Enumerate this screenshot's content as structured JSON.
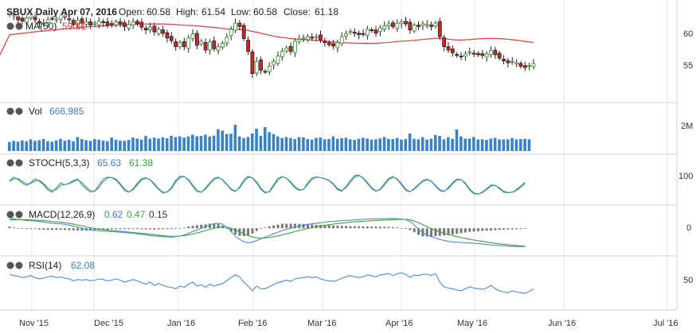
{
  "chart_data": {
    "type": "candlestick",
    "symbol": "SBUX",
    "header": {
      "prefix": "SBUX Daily Apr 07, 2016",
      "open_label": "Open:",
      "open": "60.58",
      "high_label": "High:",
      "high": "61.54",
      "low_label": "Low:",
      "low": "60.58",
      "close_label": "Close:",
      "close": "61.18"
    },
    "price_panel": {
      "ma_label": "MA(50)",
      "ma_value": "59.81",
      "ylim": [
        51,
        64
      ],
      "yticks": [
        "60",
        "55"
      ],
      "closes": [
        63.0,
        62.5,
        62.0,
        61.8,
        62.3,
        62.5,
        62.0,
        61.5,
        61.5,
        62.0,
        62.2,
        62.1,
        62.6,
        62.4,
        62.0,
        61.3,
        61.9,
        61.5,
        61.7,
        61.2,
        61.5,
        61.8,
        61.6,
        61.2,
        61.4,
        61.7,
        61.4,
        61.0,
        61.3,
        61.7,
        61.4,
        60.9,
        60.5,
        60.9,
        60.2,
        60.6,
        60.0,
        59.3,
        58.9,
        58.0,
        58.6,
        58.0,
        59.3,
        59.9,
        58.2,
        58.8,
        57.5,
        58.7,
        57.7,
        58.0,
        58.5,
        59.4,
        60.6,
        61.5,
        61.0,
        59.2,
        57.3,
        54.0,
        55.8,
        54.5,
        54.3,
        55.1,
        55.8,
        56.6,
        57.3,
        57.8,
        57.3,
        58.8,
        59.1,
        59.3,
        59.5,
        59.4,
        59.5,
        59.0,
        58.6,
        58.3,
        58.1,
        58.6,
        59.5,
        59.9,
        60.3,
        60.0,
        59.8,
        59.9,
        60.6,
        60.4,
        60.0,
        60.8,
        61.1,
        61.4,
        61.0,
        61.5,
        61.7,
        61.4,
        60.5,
        61.2,
        61.0,
        61.4,
        61.3,
        61.0,
        61.5,
        59.5,
        58.0,
        57.5,
        57.1,
        56.7,
        56.5,
        56.9,
        57.2,
        57.0,
        56.8,
        56.7,
        56.9,
        57.4,
        56.8,
        56.3,
        55.9,
        55.6,
        55.8,
        55.6,
        55.1,
        54.9,
        55.2,
        55.5
      ]
    },
    "volume_panel": {
      "label": "Vol",
      "value": "666,985",
      "ytick": "2M",
      "ylim": [
        0,
        2400000
      ],
      "values": [
        680000,
        760000,
        700000,
        800000,
        740000,
        880000,
        760000,
        820000,
        910000,
        740000,
        700000,
        800000,
        920000,
        780000,
        850000,
        740000,
        1060000,
        900000,
        820000,
        760000,
        900000,
        860000,
        790000,
        740000,
        1010000,
        860000,
        790000,
        760000,
        840000,
        1010000,
        940000,
        860000,
        1130000,
        930000,
        1010000,
        940000,
        1030000,
        960000,
        1150000,
        1050000,
        1100000,
        1010000,
        1100000,
        1230000,
        1110000,
        1140000,
        1230000,
        1100000,
        1160000,
        1640000,
        1540000,
        1280000,
        1300000,
        1980000,
        1100000,
        980000,
        1060000,
        1320000,
        1680000,
        1140000,
        1800000,
        1420000,
        1280000,
        1100000,
        990000,
        1050000,
        980000,
        900000,
        1050000,
        1020000,
        900000,
        860000,
        980000,
        1020000,
        880000,
        900000,
        1100000,
        920000,
        960000,
        1000000,
        880000,
        840000,
        920000,
        1000000,
        940000,
        860000,
        880000,
        950000,
        1060000,
        920000,
        900000,
        980000,
        860000,
        900000,
        1320000,
        920000,
        880000,
        1040000,
        870000,
        930000,
        1200000,
        1140000,
        880000,
        1040000,
        920000,
        1620000,
        1100000,
        930000,
        940000,
        1060000,
        870000,
        880000,
        840000,
        940000,
        990000,
        880000,
        870000,
        880000,
        980000,
        880000,
        900000,
        920000,
        880000
      ]
    },
    "stoch_panel": {
      "label": "STOCH(5,3,3)",
      "k_value": "65.63",
      "d_value": "61.38",
      "ytick": "100",
      "ylim": [
        0,
        100
      ],
      "k": [
        70,
        82,
        74,
        62,
        54,
        64,
        77,
        68,
        56,
        39,
        32,
        47,
        63,
        56,
        62,
        71,
        76,
        56,
        43,
        32,
        36,
        56,
        76,
        82,
        80,
        72,
        56,
        37,
        32,
        43,
        62,
        77,
        80,
        73,
        56,
        41,
        29,
        33,
        48,
        71,
        85,
        84,
        71,
        52,
        34,
        32,
        46,
        64,
        78,
        82,
        72,
        56,
        40,
        34,
        50,
        73,
        85,
        79,
        62,
        41,
        29,
        35,
        58,
        78,
        84,
        78,
        63,
        46,
        38,
        41,
        64,
        79,
        83,
        80,
        76,
        70,
        57,
        40,
        35,
        52,
        71,
        87,
        89,
        78,
        60,
        44,
        35,
        42,
        61,
        78,
        84,
        74,
        56,
        38,
        33,
        45,
        58,
        71,
        75,
        68,
        52,
        37,
        34,
        48,
        64,
        75,
        74,
        59,
        39,
        27,
        25,
        33,
        44,
        56,
        55,
        43,
        32,
        30,
        32,
        41,
        53,
        65
      ],
      "d": [
        68,
        76,
        77,
        68,
        59,
        61,
        70,
        71,
        60,
        45,
        36,
        41,
        55,
        58,
        60,
        67,
        73,
        64,
        49,
        37,
        35,
        48,
        68,
        79,
        81,
        75,
        60,
        42,
        33,
        40,
        57,
        72,
        79,
        74,
        60,
        44,
        32,
        32,
        44,
        66,
        80,
        84,
        74,
        56,
        38,
        32,
        42,
        59,
        74,
        80,
        74,
        59,
        43,
        36,
        46,
        67,
        81,
        80,
        66,
        45,
        32,
        33,
        52,
        73,
        83,
        79,
        66,
        50,
        40,
        41,
        58,
        74,
        82,
        80,
        77,
        71,
        60,
        44,
        37,
        47,
        65,
        82,
        87,
        80,
        64,
        47,
        37,
        40,
        56,
        74,
        82,
        76,
        60,
        42,
        34,
        42,
        55,
        68,
        73,
        69,
        55,
        40,
        35,
        44,
        60,
        72,
        74,
        62,
        43,
        30,
        26,
        31,
        41,
        53,
        54,
        46,
        35,
        31,
        32,
        38,
        49,
        61
      ]
    },
    "macd_panel": {
      "label": "MACD(12,26,9)",
      "macd_value": "0.62",
      "signal_value": "0.47",
      "hist_value": "0.15",
      "ytick": "0",
      "ylim": [
        -2.2,
        1.8
      ],
      "macd": [
        0.9,
        0.85,
        0.8,
        0.75,
        0.7,
        0.68,
        0.66,
        0.6,
        0.55,
        0.5,
        0.45,
        0.42,
        0.4,
        0.35,
        0.28,
        0.2,
        0.1,
        0.0,
        -0.1,
        -0.15,
        -0.2,
        -0.22,
        -0.25,
        -0.28,
        -0.3,
        -0.32,
        -0.35,
        -0.38,
        -0.42,
        -0.45,
        -0.5,
        -0.55,
        -0.6,
        -0.65,
        -0.7,
        -0.72,
        -0.75,
        -0.78,
        -0.8,
        -0.75,
        -0.7,
        -0.6,
        -0.45,
        -0.3,
        -0.15,
        0.0,
        0.15,
        0.3,
        0.4,
        0.45,
        0.35,
        0.1,
        -0.3,
        -0.7,
        -1.0,
        -1.2,
        -1.3,
        -1.25,
        -1.1,
        -0.95,
        -0.8,
        -0.65,
        -0.5,
        -0.35,
        -0.2,
        -0.1,
        0.0,
        0.1,
        0.2,
        0.28,
        0.35,
        0.4,
        0.45,
        0.5,
        0.55,
        0.6,
        0.62,
        0.65,
        0.68,
        0.7,
        0.72,
        0.75,
        0.78,
        0.8,
        0.82,
        0.84,
        0.85,
        0.86,
        0.87,
        0.88,
        0.88,
        0.86,
        0.83,
        0.78,
        0.6,
        0.3,
        -0.1,
        -0.4,
        -0.6,
        -0.75,
        -0.88,
        -1.0,
        -1.1,
        -1.18,
        -1.22,
        -1.25,
        -1.28,
        -1.3,
        -1.32,
        -1.35,
        -1.38,
        -1.42,
        -1.46,
        -1.5,
        -1.52,
        -1.55,
        -1.58,
        -1.6,
        -1.62,
        -1.64,
        -1.65,
        -1.62
      ],
      "signal": [
        0.75,
        0.77,
        0.78,
        0.78,
        0.77,
        0.75,
        0.73,
        0.71,
        0.68,
        0.65,
        0.6,
        0.57,
        0.54,
        0.5,
        0.45,
        0.38,
        0.3,
        0.22,
        0.12,
        0.05,
        -0.02,
        -0.08,
        -0.12,
        -0.16,
        -0.2,
        -0.23,
        -0.27,
        -0.3,
        -0.34,
        -0.38,
        -0.42,
        -0.46,
        -0.5,
        -0.54,
        -0.58,
        -0.62,
        -0.66,
        -0.7,
        -0.72,
        -0.72,
        -0.7,
        -0.66,
        -0.6,
        -0.52,
        -0.42,
        -0.32,
        -0.2,
        -0.1,
        0.0,
        0.08,
        0.12,
        0.1,
        0.0,
        -0.15,
        -0.32,
        -0.5,
        -0.66,
        -0.78,
        -0.85,
        -0.88,
        -0.86,
        -0.82,
        -0.76,
        -0.68,
        -0.6,
        -0.5,
        -0.4,
        -0.3,
        -0.2,
        -0.1,
        -0.02,
        0.06,
        0.14,
        0.2,
        0.26,
        0.32,
        0.37,
        0.42,
        0.46,
        0.5,
        0.54,
        0.57,
        0.6,
        0.63,
        0.66,
        0.68,
        0.7,
        0.72,
        0.74,
        0.76,
        0.78,
        0.79,
        0.8,
        0.8,
        0.76,
        0.66,
        0.5,
        0.32,
        0.14,
        -0.02,
        -0.18,
        -0.32,
        -0.45,
        -0.56,
        -0.66,
        -0.75,
        -0.84,
        -0.92,
        -0.99,
        -1.06,
        -1.12,
        -1.18,
        -1.24,
        -1.3,
        -1.35,
        -1.4,
        -1.44,
        -1.48,
        -1.52,
        -1.55,
        -1.58,
        -1.6
      ]
    },
    "rsi_panel": {
      "label": "RSI(14)",
      "value": "62.08",
      "ytick": "50",
      "ylim": [
        15,
        85
      ],
      "values": [
        62,
        60,
        59,
        57,
        58,
        60,
        57,
        55,
        56,
        58,
        59,
        57,
        58,
        56,
        55,
        52,
        54,
        53,
        54,
        52,
        53,
        55,
        54,
        52,
        53,
        55,
        53,
        50,
        52,
        54,
        52,
        49,
        47,
        50,
        45,
        48,
        45,
        43,
        42,
        40,
        44,
        42,
        47,
        50,
        44,
        46,
        42,
        47,
        44,
        46,
        48,
        52,
        57,
        61,
        58,
        50,
        44,
        37,
        44,
        40,
        40,
        43,
        46,
        49,
        51,
        53,
        51,
        55,
        56,
        57,
        58,
        57,
        58,
        55,
        53,
        52,
        51,
        53,
        56,
        58,
        60,
        58,
        57,
        58,
        61,
        60,
        58,
        61,
        62,
        63,
        60,
        63,
        64,
        62,
        57,
        61,
        60,
        62,
        62,
        60,
        63,
        50,
        43,
        41,
        40,
        38,
        37,
        40,
        43,
        41,
        40,
        39,
        41,
        45,
        40,
        37,
        35,
        34,
        37,
        35,
        34,
        33,
        36,
        40
      ]
    },
    "x_axis": {
      "labels": [
        "Nov '15",
        "Dec '15",
        "Jan '16",
        "Feb '16",
        "Mar '16",
        "Apr '16",
        "May '16",
        "Jun '16",
        "Jul '16"
      ]
    },
    "colors": {
      "up": "#2e8b2e",
      "down": "#c62828",
      "ma": "#e23b3b",
      "volume": "#3a82c6",
      "blue_line": "#4a8ad8",
      "green_line": "#3aa23a",
      "macd_hist": "#777777",
      "grid": "#e6e6e6",
      "text_blue": "#3a7dc9"
    }
  }
}
